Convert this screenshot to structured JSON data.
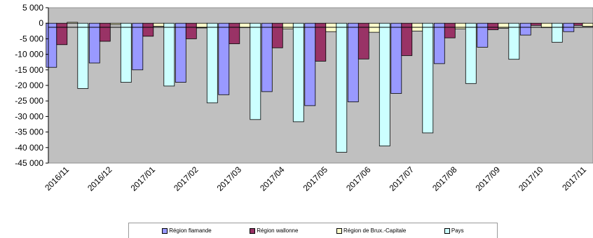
{
  "chart_data": {
    "type": "bar",
    "categories": [
      "2016/11",
      "2016/12",
      "2017/01",
      "2017/02",
      "2017/03",
      "2017/04",
      "2017/05",
      "2017/06",
      "2017/07",
      "2017/08",
      "2017/09",
      "2017/10",
      "2017/11"
    ],
    "ylim": [
      -45000,
      5000
    ],
    "yticks": [
      5000,
      0,
      -5000,
      -10000,
      -15000,
      -20000,
      -25000,
      -30000,
      -35000,
      -40000,
      -45000
    ],
    "ytick_labels": [
      "5 000",
      "0",
      "-5 000",
      "-10 000",
      "-15 000",
      "-20 000",
      "-25 000",
      "-30 000",
      "-35 000",
      "-40 000",
      "-45 000"
    ],
    "grid": false,
    "plot_background": "#c0c0c0",
    "legend_position": "bottom",
    "series": [
      {
        "name": "Région flamande",
        "color": "#9999ff",
        "values": [
          -14200,
          -12800,
          -15000,
          -19000,
          -23000,
          -22000,
          -26500,
          -25300,
          -22600,
          -13000,
          -7700,
          -3800,
          -2700
        ]
      },
      {
        "name": "Région wallonne",
        "color": "#993366",
        "values": [
          -6900,
          -5800,
          -4200,
          -5000,
          -6600,
          -7900,
          -12200,
          -11500,
          -10400,
          -4700,
          -2100,
          -700,
          -700
        ]
      },
      {
        "name": "Région de Brux.-Capitale",
        "color": "#ffffcc",
        "values": [
          300,
          -400,
          -1000,
          -1500,
          -1400,
          -1800,
          -2700,
          -2900,
          -2500,
          -1800,
          -1600,
          -1400,
          -1000
        ]
      },
      {
        "name": "Pays",
        "color": "#ccffff",
        "values": [
          -21000,
          -19000,
          -20200,
          -25600,
          -31000,
          -31700,
          -41500,
          -39500,
          -35300,
          -19400,
          -11600,
          -6100,
          null
        ]
      }
    ]
  }
}
